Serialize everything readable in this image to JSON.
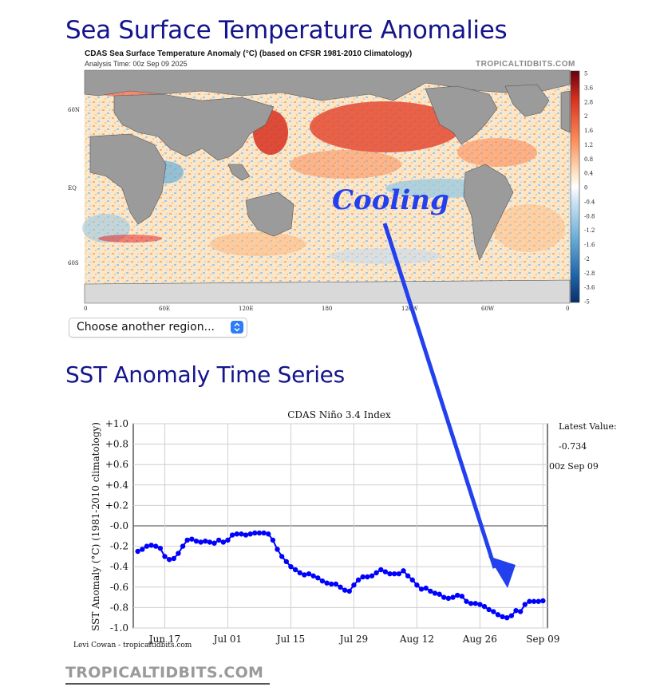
{
  "page": {
    "heading_map": "Sea Surface Temperature Anomalies",
    "heading_series": "SST Anomaly Time Series",
    "footer_brand": "TROPICALTIDBITS.COM"
  },
  "map": {
    "title": "CDAS Sea Surface Temperature Anomaly (°C) (based on CFSR 1981-2010 Climatology)",
    "analysis_time": "Analysis Time: 00z Sep 09 2025",
    "brand": "TROPICALTIDBITS.COM",
    "annotation": "Cooling",
    "lat_labels": [
      "60N",
      "EQ",
      "60S"
    ],
    "lon_labels": [
      "0",
      "60E",
      "120E",
      "180",
      "120W",
      "60W",
      "0"
    ],
    "colorbar_labels": [
      "5",
      "3.6",
      "2.8",
      "2",
      "1.6",
      "1.2",
      "0.8",
      "0.4",
      "0",
      "-0.4",
      "-0.8",
      "-1.2",
      "-1.6",
      "-2",
      "-2.8",
      "-3.6",
      "-5"
    ],
    "colors": {
      "warm": "#d7301f",
      "cool": "#2c7fb8",
      "land": "#9b9b9b",
      "ice": "#d9d9d9"
    }
  },
  "region_select": {
    "label": "Choose another region..."
  },
  "chart_data": {
    "type": "line",
    "title": "CDAS Niño 3.4 Index",
    "ylabel": "SST Anomaly (°C) (1981-2010 climatology)",
    "ylim": [
      -1.0,
      1.0
    ],
    "y_ticks": [
      1.0,
      0.8,
      0.6,
      0.4,
      0.2,
      0.0,
      -0.2,
      -0.4,
      -0.6,
      -0.8,
      -1.0
    ],
    "y_tick_labels": [
      "+1.0",
      "+0.8",
      "+0.6",
      "+0.4",
      "+0.2",
      "-0.0",
      "-0.2",
      "-0.4",
      "-0.6",
      "-0.8",
      "-1.0"
    ],
    "x_range": [
      "2025-06-10",
      "2025-09-10"
    ],
    "x_ticks": [
      "2025-06-17",
      "2025-07-01",
      "2025-07-15",
      "2025-07-29",
      "2025-08-12",
      "2025-08-26",
      "2025-09-09"
    ],
    "x_tick_labels": [
      "Jun 17",
      "Jul 01",
      "Jul 15",
      "Jul 29",
      "Aug 12",
      "Aug 26",
      "Sep 09"
    ],
    "grid": true,
    "latest_label": "Latest Value:",
    "latest_value": "-0.734",
    "latest_time": "00z Sep 09",
    "credit": "Levi Cowan - tropicaltidbits.com",
    "line_color": "#0000ff",
    "series": [
      {
        "x": [
          "2025-06-11",
          "2025-06-12",
          "2025-06-13",
          "2025-06-14",
          "2025-06-15",
          "2025-06-16",
          "2025-06-17",
          "2025-06-18",
          "2025-06-19",
          "2025-06-20",
          "2025-06-21",
          "2025-06-22",
          "2025-06-23",
          "2025-06-24",
          "2025-06-25",
          "2025-06-26",
          "2025-06-27",
          "2025-06-28",
          "2025-06-29",
          "2025-06-30",
          "2025-07-01",
          "2025-07-02",
          "2025-07-03",
          "2025-07-04",
          "2025-07-05",
          "2025-07-06",
          "2025-07-07",
          "2025-07-08",
          "2025-07-09",
          "2025-07-10",
          "2025-07-11",
          "2025-07-12",
          "2025-07-13",
          "2025-07-14",
          "2025-07-15",
          "2025-07-16",
          "2025-07-17",
          "2025-07-18",
          "2025-07-19",
          "2025-07-20",
          "2025-07-21",
          "2025-07-22",
          "2025-07-23",
          "2025-07-24",
          "2025-07-25",
          "2025-07-26",
          "2025-07-27",
          "2025-07-28",
          "2025-07-29",
          "2025-07-30",
          "2025-07-31",
          "2025-08-01",
          "2025-08-02",
          "2025-08-03",
          "2025-08-04",
          "2025-08-05",
          "2025-08-06",
          "2025-08-07",
          "2025-08-08",
          "2025-08-09",
          "2025-08-10",
          "2025-08-11",
          "2025-08-12",
          "2025-08-13",
          "2025-08-14",
          "2025-08-15",
          "2025-08-16",
          "2025-08-17",
          "2025-08-18",
          "2025-08-19",
          "2025-08-20",
          "2025-08-21",
          "2025-08-22",
          "2025-08-23",
          "2025-08-24",
          "2025-08-25",
          "2025-08-26",
          "2025-08-27",
          "2025-08-28",
          "2025-08-29",
          "2025-08-30",
          "2025-08-31",
          "2025-09-01",
          "2025-09-02",
          "2025-09-03",
          "2025-09-04",
          "2025-09-05",
          "2025-09-06",
          "2025-09-07",
          "2025-09-08",
          "2025-09-09"
        ],
        "y": [
          -0.25,
          -0.23,
          -0.2,
          -0.19,
          -0.2,
          -0.22,
          -0.3,
          -0.33,
          -0.32,
          -0.27,
          -0.2,
          -0.14,
          -0.13,
          -0.15,
          -0.16,
          -0.15,
          -0.16,
          -0.17,
          -0.14,
          -0.16,
          -0.14,
          -0.09,
          -0.08,
          -0.08,
          -0.09,
          -0.08,
          -0.07,
          -0.07,
          -0.07,
          -0.08,
          -0.14,
          -0.23,
          -0.3,
          -0.35,
          -0.4,
          -0.43,
          -0.46,
          -0.48,
          -0.47,
          -0.49,
          -0.51,
          -0.54,
          -0.56,
          -0.57,
          -0.57,
          -0.6,
          -0.63,
          -0.64,
          -0.58,
          -0.53,
          -0.5,
          -0.5,
          -0.49,
          -0.46,
          -0.43,
          -0.45,
          -0.47,
          -0.47,
          -0.47,
          -0.44,
          -0.49,
          -0.53,
          -0.58,
          -0.62,
          -0.61,
          -0.64,
          -0.66,
          -0.67,
          -0.7,
          -0.71,
          -0.7,
          -0.68,
          -0.69,
          -0.74,
          -0.76,
          -0.76,
          -0.77,
          -0.79,
          -0.82,
          -0.84,
          -0.87,
          -0.89,
          -0.9,
          -0.88,
          -0.83,
          -0.84,
          -0.77,
          -0.74,
          -0.74,
          -0.74,
          -0.734
        ]
      }
    ]
  }
}
